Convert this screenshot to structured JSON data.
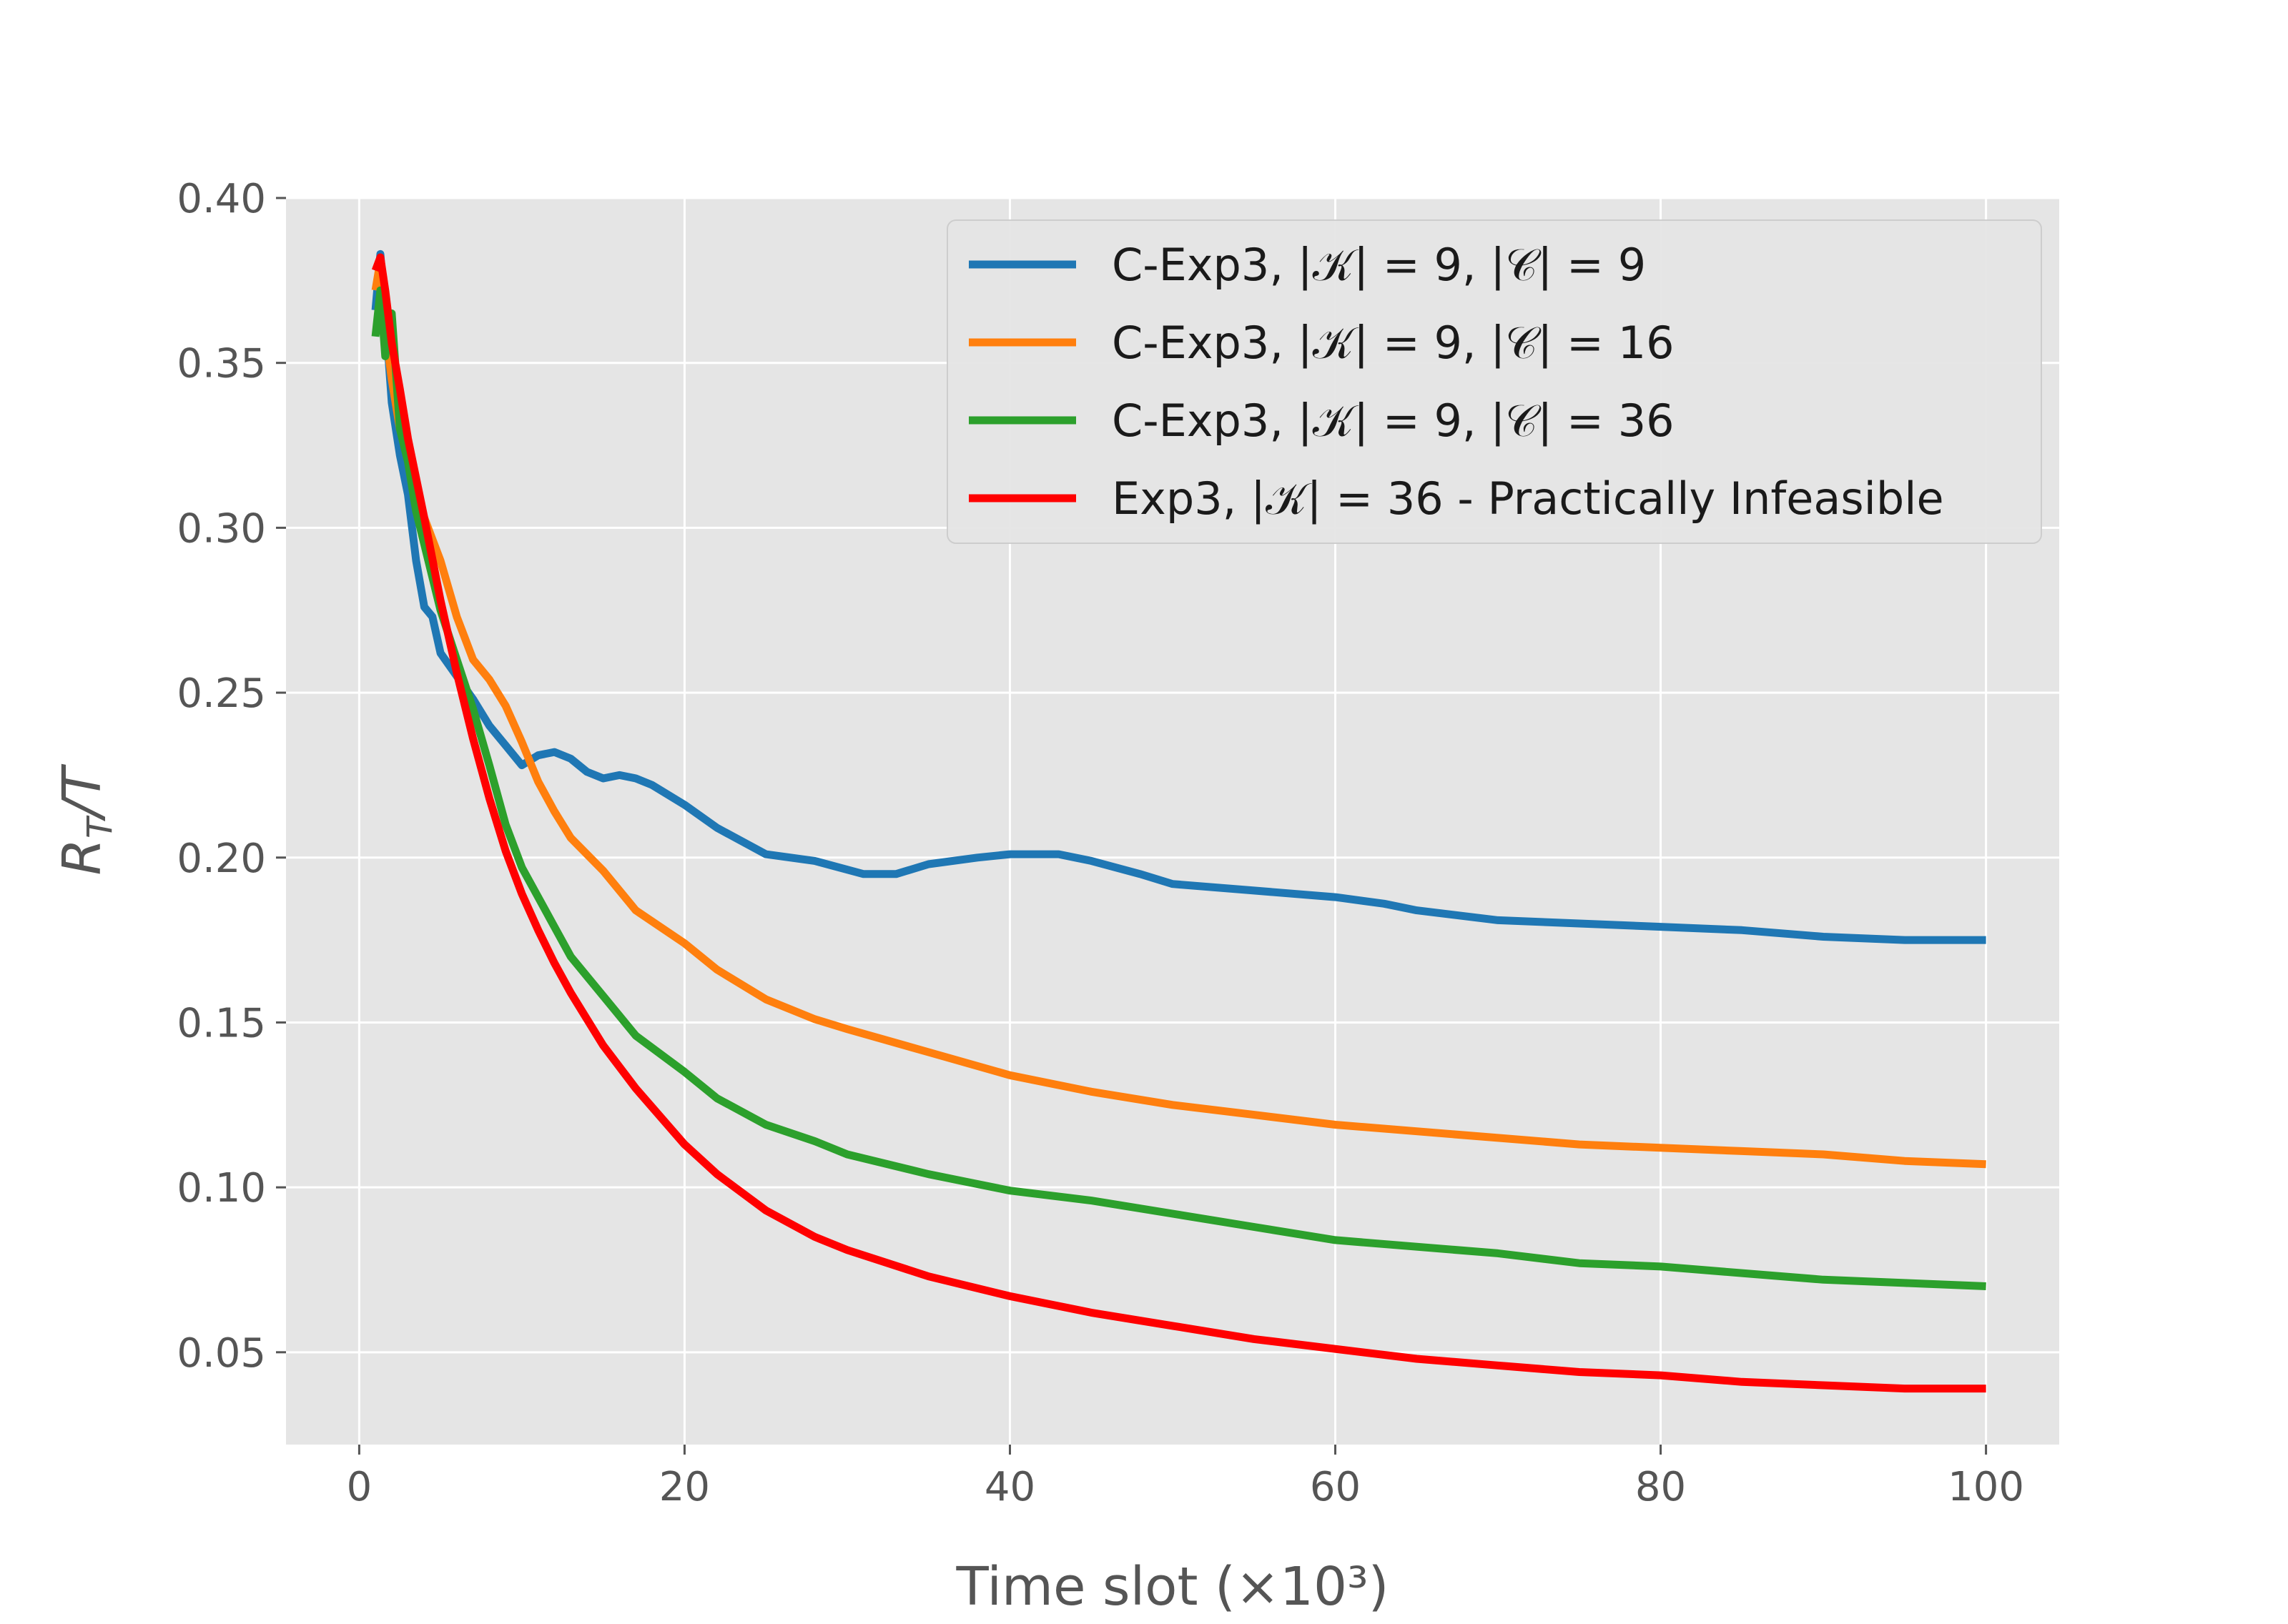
{
  "chart_data": {
    "type": "line",
    "title": "",
    "xlabel": "Time slot (×10³)",
    "ylabel": "R_T/T",
    "ylabel_main": "R",
    "ylabel_sub": "T",
    "ylabel_tail": "/T",
    "xlim": [
      -4.5,
      104.5
    ],
    "ylim": [
      0.022,
      0.4
    ],
    "xticks": [
      0,
      20,
      40,
      60,
      80,
      100
    ],
    "xtick_labels": [
      "0",
      "20",
      "40",
      "60",
      "80",
      "100"
    ],
    "yticks": [
      0.05,
      0.1,
      0.15,
      0.2,
      0.25,
      0.3,
      0.35,
      0.4
    ],
    "ytick_labels": [
      "0.05",
      "0.10",
      "0.15",
      "0.20",
      "0.25",
      "0.30",
      "0.35",
      "0.40"
    ],
    "grid": true,
    "legend_position": "upper-right",
    "series": [
      {
        "name": "C-Exp3, |𝒦| = 9, |𝒞| = 9",
        "color": "#1f77b4",
        "x": [
          1,
          1.3,
          1.6,
          2,
          2.5,
          3,
          3.5,
          4,
          4.5,
          5,
          6,
          7,
          8,
          9,
          10,
          11,
          12,
          13,
          14,
          15,
          16,
          17,
          18,
          20,
          22,
          25,
          28,
          31,
          33,
          35,
          38,
          40,
          43,
          45,
          48,
          50,
          55,
          60,
          63,
          65,
          70,
          75,
          80,
          85,
          90,
          95,
          100
        ],
        "values": [
          0.366,
          0.383,
          0.365,
          0.338,
          0.322,
          0.31,
          0.29,
          0.276,
          0.273,
          0.262,
          0.255,
          0.248,
          0.24,
          0.234,
          0.228,
          0.231,
          0.232,
          0.23,
          0.226,
          0.224,
          0.225,
          0.224,
          0.222,
          0.216,
          0.209,
          0.201,
          0.199,
          0.195,
          0.195,
          0.198,
          0.2,
          0.201,
          0.201,
          0.199,
          0.195,
          0.192,
          0.19,
          0.188,
          0.186,
          0.184,
          0.181,
          0.18,
          0.179,
          0.178,
          0.176,
          0.175,
          0.175
        ]
      },
      {
        "name": "C-Exp3, |𝒦| = 9, |𝒞| = 16",
        "color": "#ff7f0e",
        "x": [
          1,
          1.3,
          1.6,
          2,
          2.5,
          3,
          3.5,
          4,
          5,
          6,
          7,
          8,
          9,
          10,
          11,
          12,
          13,
          15,
          17,
          20,
          22,
          25,
          28,
          30,
          35,
          40,
          45,
          50,
          55,
          60,
          65,
          70,
          75,
          80,
          85,
          90,
          95,
          100
        ],
        "values": [
          0.372,
          0.381,
          0.36,
          0.345,
          0.33,
          0.322,
          0.31,
          0.303,
          0.29,
          0.273,
          0.26,
          0.254,
          0.246,
          0.235,
          0.223,
          0.214,
          0.206,
          0.196,
          0.184,
          0.174,
          0.166,
          0.157,
          0.151,
          0.148,
          0.141,
          0.134,
          0.129,
          0.125,
          0.122,
          0.119,
          0.117,
          0.115,
          0.113,
          0.112,
          0.111,
          0.11,
          0.108,
          0.107
        ]
      },
      {
        "name": "C-Exp3, |𝒦| = 9, |𝒞| = 36",
        "color": "#2ca02c",
        "x": [
          1,
          1.3,
          1.6,
          2,
          2.5,
          3,
          3.5,
          4,
          5,
          6,
          7,
          8,
          9,
          10,
          11,
          12,
          13,
          15,
          17,
          20,
          22,
          25,
          28,
          30,
          35,
          40,
          45,
          50,
          55,
          60,
          65,
          70,
          75,
          80,
          85,
          90,
          95,
          100
        ],
        "values": [
          0.358,
          0.372,
          0.352,
          0.365,
          0.33,
          0.32,
          0.305,
          0.295,
          0.275,
          0.26,
          0.245,
          0.228,
          0.21,
          0.197,
          0.188,
          0.179,
          0.17,
          0.158,
          0.146,
          0.135,
          0.127,
          0.119,
          0.114,
          0.11,
          0.104,
          0.099,
          0.096,
          0.092,
          0.088,
          0.084,
          0.082,
          0.08,
          0.077,
          0.076,
          0.074,
          0.072,
          0.071,
          0.07
        ]
      },
      {
        "name": "Exp3, |𝒦| = 36 - Practically Infeasible",
        "color": "#ff0000",
        "x": [
          1,
          1.3,
          1.6,
          2,
          2.5,
          3,
          4,
          5,
          6,
          7,
          8,
          9,
          10,
          11,
          12,
          13,
          15,
          17,
          20,
          22,
          25,
          28,
          30,
          35,
          40,
          45,
          50,
          55,
          60,
          65,
          70,
          75,
          80,
          85,
          90,
          95,
          100
        ],
        "values": [
          0.378,
          0.382,
          0.372,
          0.356,
          0.342,
          0.327,
          0.303,
          0.278,
          0.256,
          0.236,
          0.218,
          0.202,
          0.189,
          0.178,
          0.168,
          0.159,
          0.143,
          0.13,
          0.113,
          0.104,
          0.093,
          0.085,
          0.081,
          0.073,
          0.067,
          0.062,
          0.058,
          0.054,
          0.051,
          0.048,
          0.046,
          0.044,
          0.043,
          0.041,
          0.04,
          0.039,
          0.039
        ]
      }
    ]
  }
}
